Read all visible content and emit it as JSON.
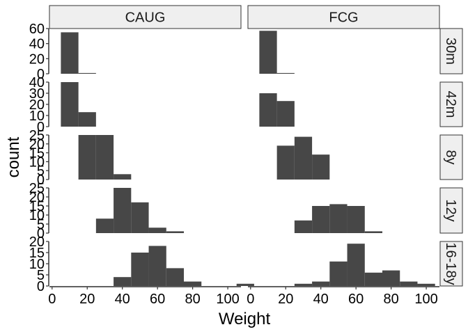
{
  "chart_data": {
    "type": "bar",
    "subtype": "faceted-histogram",
    "xlabel": "Weight",
    "ylabel": "count",
    "bin_width": 10,
    "xlim": [
      -1.5,
      107.5
    ],
    "x_ticks": [
      0,
      20,
      40,
      60,
      80,
      100
    ],
    "columns": [
      "CAUG",
      "FCG"
    ],
    "rows": [
      {
        "label": "30m",
        "ylim": [
          0,
          60
        ],
        "y_ticks": [
          0,
          20,
          40,
          60
        ]
      },
      {
        "label": "42m",
        "ylim": [
          0,
          40
        ],
        "y_ticks": [
          0,
          10,
          20,
          30,
          40
        ]
      },
      {
        "label": "8y",
        "ylim": [
          0,
          25
        ],
        "y_ticks": [
          0,
          5,
          10,
          15,
          20,
          25
        ]
      },
      {
        "label": "12y",
        "ylim": [
          0,
          25
        ],
        "y_ticks": [
          0,
          5,
          10,
          15,
          20,
          25
        ]
      },
      {
        "label": "16-18y",
        "ylim": [
          0,
          20
        ],
        "y_ticks": [
          0,
          5,
          10,
          15,
          20
        ]
      }
    ],
    "panels": [
      {
        "column": "CAUG",
        "row": "30m",
        "bins": [
          {
            "x0": 5,
            "x1": 15,
            "count": 55
          },
          {
            "x0": 15,
            "x1": 25,
            "count": 1
          }
        ]
      },
      {
        "column": "FCG",
        "row": "30m",
        "bins": [
          {
            "x0": 5,
            "x1": 15,
            "count": 57
          },
          {
            "x0": 15,
            "x1": 25,
            "count": 1
          }
        ]
      },
      {
        "column": "CAUG",
        "row": "42m",
        "bins": [
          {
            "x0": 5,
            "x1": 15,
            "count": 40
          },
          {
            "x0": 15,
            "x1": 25,
            "count": 13
          }
        ]
      },
      {
        "column": "FCG",
        "row": "42m",
        "bins": [
          {
            "x0": 5,
            "x1": 15,
            "count": 30
          },
          {
            "x0": 15,
            "x1": 25,
            "count": 23
          }
        ]
      },
      {
        "column": "CAUG",
        "row": "8y",
        "bins": [
          {
            "x0": 15,
            "x1": 25,
            "count": 25
          },
          {
            "x0": 25,
            "x1": 35,
            "count": 25
          },
          {
            "x0": 35,
            "x1": 45,
            "count": 3
          }
        ]
      },
      {
        "column": "FCG",
        "row": "8y",
        "bins": [
          {
            "x0": 15,
            "x1": 25,
            "count": 19
          },
          {
            "x0": 25,
            "x1": 35,
            "count": 24
          },
          {
            "x0": 35,
            "x1": 45,
            "count": 14
          }
        ]
      },
      {
        "column": "CAUG",
        "row": "12y",
        "bins": [
          {
            "x0": 25,
            "x1": 35,
            "count": 8
          },
          {
            "x0": 35,
            "x1": 45,
            "count": 25
          },
          {
            "x0": 45,
            "x1": 55,
            "count": 17
          },
          {
            "x0": 55,
            "x1": 65,
            "count": 3
          },
          {
            "x0": 65,
            "x1": 75,
            "count": 1
          }
        ]
      },
      {
        "column": "FCG",
        "row": "12y",
        "bins": [
          {
            "x0": 25,
            "x1": 35,
            "count": 7
          },
          {
            "x0": 35,
            "x1": 45,
            "count": 15
          },
          {
            "x0": 45,
            "x1": 55,
            "count": 16
          },
          {
            "x0": 55,
            "x1": 65,
            "count": 15
          },
          {
            "x0": 65,
            "x1": 75,
            "count": 1
          }
        ]
      },
      {
        "column": "CAUG",
        "row": "16-18y",
        "bins": [
          {
            "x0": 35,
            "x1": 45,
            "count": 4
          },
          {
            "x0": 45,
            "x1": 55,
            "count": 15
          },
          {
            "x0": 55,
            "x1": 65,
            "count": 18
          },
          {
            "x0": 65,
            "x1": 75,
            "count": 8
          },
          {
            "x0": 75,
            "x1": 85,
            "count": 2
          },
          {
            "x0": 85,
            "x1": 95,
            "count": 0
          },
          {
            "x0": 95,
            "x1": 105,
            "count": 0
          },
          {
            "x0": 105,
            "x1": 115,
            "count": 1
          }
        ]
      },
      {
        "column": "FCG",
        "row": "16-18y",
        "bins": [
          {
            "x0": 25,
            "x1": 35,
            "count": 1
          },
          {
            "x0": 35,
            "x1": 45,
            "count": 2
          },
          {
            "x0": 45,
            "x1": 55,
            "count": 11
          },
          {
            "x0": 55,
            "x1": 65,
            "count": 19
          },
          {
            "x0": 65,
            "x1": 75,
            "count": 6
          },
          {
            "x0": 75,
            "x1": 85,
            "count": 7
          },
          {
            "x0": 85,
            "x1": 95,
            "count": 2
          },
          {
            "x0": 95,
            "x1": 105,
            "count": 1
          }
        ]
      }
    ],
    "bar_color": "#474747",
    "panel_background": "#ffffff",
    "strip_background": "#efefef",
    "strip_border": "#333333",
    "grid": false,
    "legend": "none"
  }
}
